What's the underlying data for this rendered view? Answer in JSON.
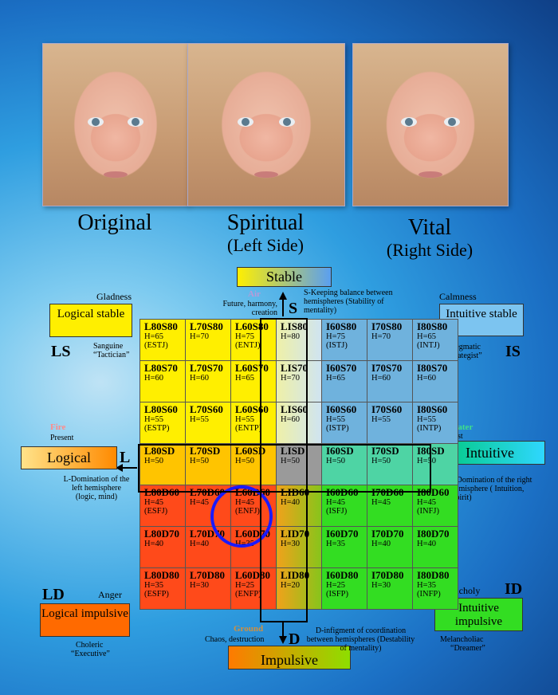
{
  "photos": [
    {
      "caption": "Original",
      "sub": ""
    },
    {
      "caption": "Spiritual",
      "sub": "(Left Side)"
    },
    {
      "caption": "Vital",
      "sub": "(Right Side)"
    }
  ],
  "axis": {
    "stable": "Stable",
    "impulsive": "Impulsive",
    "logical": "Logical",
    "intuitive": "Intuitive",
    "S": "S",
    "D": "D",
    "L": "L",
    "I": "I"
  },
  "elements": {
    "air": "Air",
    "air_text": "Future, harmony, creation",
    "fire": "Fire",
    "fire_text": "Present",
    "water": "Water",
    "water_text": "Past",
    "ground": "Ground",
    "ground_text": "Chaos, destruction"
  },
  "notes": {
    "s": "S-Keeping balance between hemispheres (Stability of mentality)",
    "l": "L-Domination of the left hemisphere (logic, mind)",
    "i": "I-Domination of the right hemisphere ( Intuition, Spirit)",
    "d": "D-infigment of coordination between hemispheres (Destability of mentality)"
  },
  "corners": {
    "ls": {
      "emotion": "Gladness",
      "box": "Logical stable",
      "code": "LS",
      "temp": "Sanguine",
      "role": "“Tactician”"
    },
    "is": {
      "emotion": "Calmness",
      "box": "Intuitive stable",
      "code": "IS",
      "temp": "Phlegmatic",
      "role": "“Strategist”"
    },
    "ld": {
      "emotion": "Anger",
      "box": "Logical impulsive",
      "code": "LD",
      "temp": "Choleric",
      "role": "“Executive”"
    },
    "id": {
      "emotion": "Melancholy",
      "box": "Intuitive impulsive",
      "code": "ID",
      "temp": "Melancholiac",
      "role": "“Dreamer”"
    }
  },
  "grid": [
    [
      {
        "code": "L80S80",
        "h": "H=65",
        "t": "(ESTJ)"
      },
      {
        "code": "L70S80",
        "h": "H=70",
        "t": ""
      },
      {
        "code": "L60S80",
        "h": "H=75",
        "t": "(ENTJ)"
      },
      {
        "code": "LIS80",
        "h": "H=80",
        "t": ""
      },
      {
        "code": "I60S80",
        "h": "H=75",
        "t": "(ISTJ)"
      },
      {
        "code": "I70S80",
        "h": "H=70",
        "t": ""
      },
      {
        "code": "I80S80",
        "h": "H=65",
        "t": "(INTJ)"
      }
    ],
    [
      {
        "code": "L80S70",
        "h": "H=60",
        "t": ""
      },
      {
        "code": "L70S70",
        "h": "H=60",
        "t": ""
      },
      {
        "code": "L60S70",
        "h": "H=65",
        "t": ""
      },
      {
        "code": "LIS70",
        "h": "H=70",
        "t": ""
      },
      {
        "code": "I60S70",
        "h": "H=65",
        "t": ""
      },
      {
        "code": "I70S70",
        "h": "H=60",
        "t": ""
      },
      {
        "code": "I80S70",
        "h": "H=60",
        "t": ""
      }
    ],
    [
      {
        "code": "L80S60",
        "h": "H=55",
        "t": "(ESTP)"
      },
      {
        "code": "L70S60",
        "h": "H=55",
        "t": ""
      },
      {
        "code": "L60S60",
        "h": "H=55",
        "t": "(ENTP)"
      },
      {
        "code": "LIS60",
        "h": "H=60",
        "t": ""
      },
      {
        "code": "I60S60",
        "h": "H=55",
        "t": "(ISTP)"
      },
      {
        "code": "I70S60",
        "h": "H=55",
        "t": ""
      },
      {
        "code": "I80S60",
        "h": "H=55",
        "t": "(INTP)"
      }
    ],
    [
      {
        "code": "L80SD",
        "h": "H=50",
        "t": ""
      },
      {
        "code": "L70SD",
        "h": "H=50",
        "t": ""
      },
      {
        "code": "L60SD",
        "h": "H=50",
        "t": ""
      },
      {
        "code": "LISD",
        "h": "H=50",
        "t": ""
      },
      {
        "code": "I60SD",
        "h": "H=50",
        "t": ""
      },
      {
        "code": "I70SD",
        "h": "H=50",
        "t": ""
      },
      {
        "code": "I80SD",
        "h": "H=50",
        "t": ""
      }
    ],
    [
      {
        "code": "L80D60",
        "h": "H=45",
        "t": "(ESFJ)"
      },
      {
        "code": "L70D60",
        "h": "H=45",
        "t": ""
      },
      {
        "code": "L60D60",
        "h": "H=45",
        "t": "(ENFJ)"
      },
      {
        "code": "LID60",
        "h": "H=40",
        "t": ""
      },
      {
        "code": "I60D60",
        "h": "H=45",
        "t": "(ISFJ)"
      },
      {
        "code": "I70D60",
        "h": "H=45",
        "t": ""
      },
      {
        "code": "I80D60",
        "h": "H=45",
        "t": "(INFJ)"
      }
    ],
    [
      {
        "code": "L80D70",
        "h": "H=40",
        "t": ""
      },
      {
        "code": "L70D70",
        "h": "H=40",
        "t": ""
      },
      {
        "code": "L60D70",
        "h": "H=35",
        "t": ""
      },
      {
        "code": "LID70",
        "h": "H=30",
        "t": ""
      },
      {
        "code": "I60D70",
        "h": "H=35",
        "t": ""
      },
      {
        "code": "I70D70",
        "h": "H=40",
        "t": ""
      },
      {
        "code": "I80D70",
        "h": "H=40",
        "t": ""
      }
    ],
    [
      {
        "code": "L80D80",
        "h": "H=35",
        "t": "(ESFP)"
      },
      {
        "code": "L70D80",
        "h": "H=30",
        "t": ""
      },
      {
        "code": "L60D80",
        "h": "H=25",
        "t": "(ENFP)"
      },
      {
        "code": "LID80",
        "h": "H=20",
        "t": ""
      },
      {
        "code": "I60D80",
        "h": "H=25",
        "t": "(ISFP)"
      },
      {
        "code": "I70D80",
        "h": "H=30",
        "t": ""
      },
      {
        "code": "I80D80",
        "h": "H=35",
        "t": "(INFP)"
      }
    ]
  ]
}
